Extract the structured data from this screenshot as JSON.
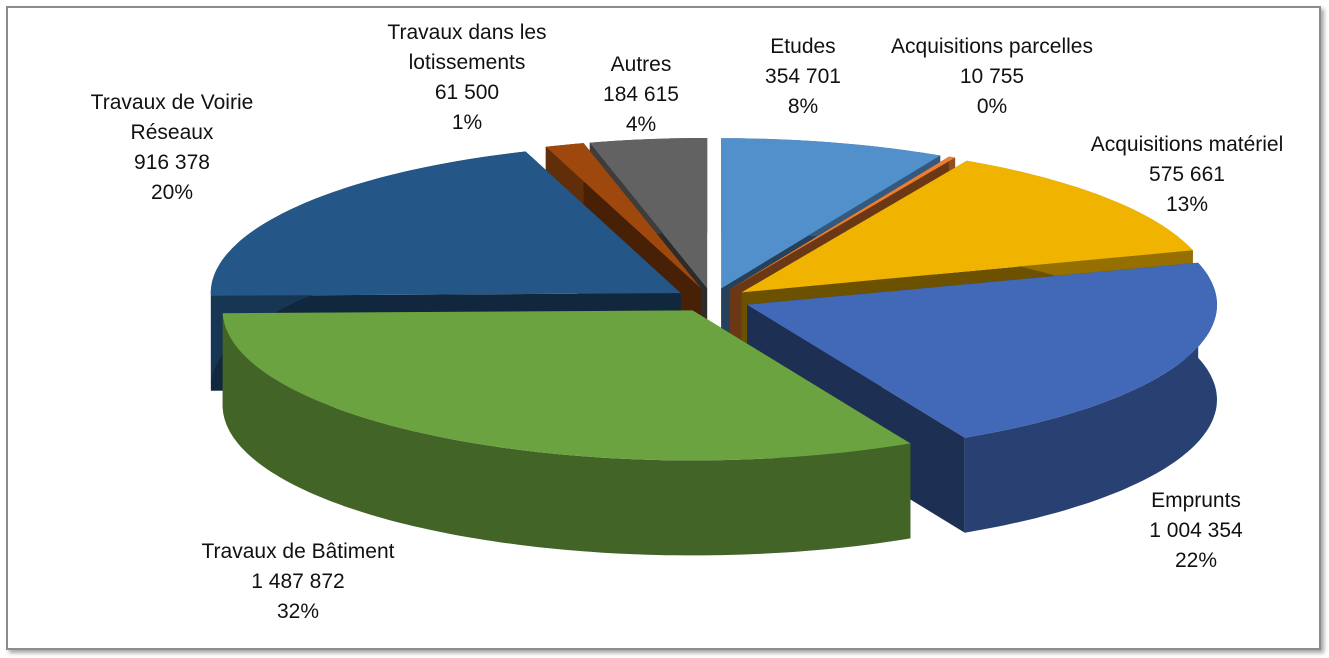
{
  "chart_data": {
    "type": "pie3d",
    "categories": [
      "Etudes",
      "Acquisitions parcelles",
      "Acquisitions matériel",
      "Emprunts",
      "Travaux de Bâtiment",
      "Travaux de Voirie Réseaux",
      "Travaux dans les lotissements",
      "Autres"
    ],
    "values": [
      354701,
      10755,
      575661,
      1004354,
      1487872,
      916378,
      61500,
      184615
    ],
    "value_labels": [
      "354 701",
      "10 755",
      "575 661",
      "1 004 354",
      "1 487 872",
      "916 378",
      "61 500",
      "184 615"
    ],
    "percent_labels": [
      "8%",
      "0%",
      "13%",
      "22%",
      "32%",
      "20%",
      "1%",
      "4%"
    ],
    "colors": [
      "#5290cc",
      "#ed7d31",
      "#f0b400",
      "#4169b8",
      "#6aa33f",
      "#245788",
      "#9e480e",
      "#626262"
    ]
  }
}
